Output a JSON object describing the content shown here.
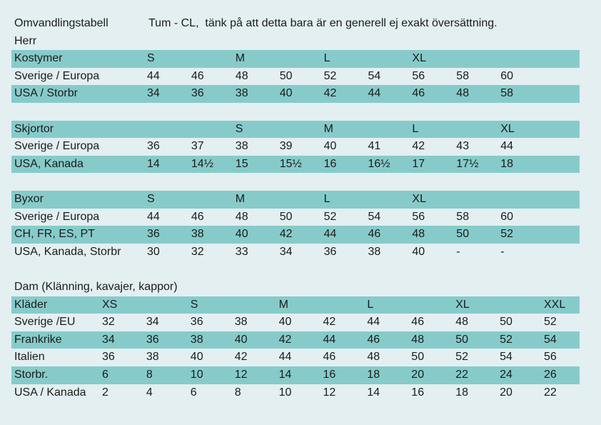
{
  "header": {
    "title": "Omvandlingstabell",
    "note": "Tum - CL,  tänk på att detta bara är en generell ej exakt översättning."
  },
  "sections": [
    {
      "heading": "Herr",
      "tables": [
        {
          "rows": [
            [
              "Kostymer",
              "S",
              null,
              "M",
              null,
              "L",
              null,
              "XL",
              null,
              null
            ],
            [
              "Sverige / Europa",
              "44",
              "46",
              "48",
              "50",
              "52",
              "54",
              "56",
              "58",
              "60"
            ],
            [
              "USA / Storbr",
              "34",
              "36",
              "38",
              "40",
              "42",
              "44",
              "46",
              "48",
              "58"
            ]
          ]
        },
        {
          "rows": [
            [
              "Skjortor",
              null,
              null,
              "S",
              null,
              "M",
              null,
              "L",
              null,
              "XL"
            ],
            [
              "Sverige / Europa",
              "36",
              "37",
              "38",
              "39",
              "40",
              "41",
              "42",
              "43",
              "44"
            ],
            [
              "USA, Kanada",
              "14",
              "14½",
              "15",
              "15½",
              "16",
              "16½",
              "17",
              "17½",
              "18"
            ]
          ]
        },
        {
          "rows": [
            [
              "Byxor",
              "S",
              null,
              "M",
              null,
              "L",
              null,
              "XL",
              null,
              null
            ],
            [
              "Sverige / Europa",
              "44",
              "46",
              "48",
              "50",
              "52",
              "54",
              "56",
              "58",
              "60"
            ],
            [
              "CH, FR, ES, PT",
              "36",
              "38",
              "40",
              "42",
              "44",
              "46",
              "48",
              "50",
              "52"
            ],
            [
              "USA, Kanada, Storbr",
              "30",
              "32",
              "33",
              "34",
              "36",
              "38",
              "40",
              "-",
              "-"
            ]
          ]
        }
      ]
    },
    {
      "heading": "Dam (Klänning, kavajer, kappor)",
      "tables": [
        {
          "rows": [
            [
              "Kläder",
              "XS",
              null,
              "S",
              null,
              "M",
              null,
              "L",
              null,
              "XL",
              null,
              "XXL"
            ],
            [
              "Sverige /EU",
              "32",
              "34",
              "36",
              "38",
              "40",
              "42",
              "44",
              "46",
              "48",
              "50",
              "52"
            ],
            [
              "Frankrike",
              "34",
              "36",
              "38",
              "40",
              "42",
              "44",
              "46",
              "48",
              "50",
              "52",
              "54"
            ],
            [
              "Italien",
              "36",
              "38",
              "40",
              "42",
              "44",
              "46",
              "48",
              "50",
              "52",
              "54",
              "56"
            ],
            [
              "Storbr.",
              "6",
              "8",
              "10",
              "12",
              "14",
              "16",
              "18",
              "20",
              "22",
              "24",
              "26"
            ],
            [
              "USA / Kanada",
              "2",
              "4",
              "6",
              "8",
              "10",
              "12",
              "14",
              "16",
              "18",
              "20",
              "22"
            ]
          ]
        }
      ]
    }
  ]
}
